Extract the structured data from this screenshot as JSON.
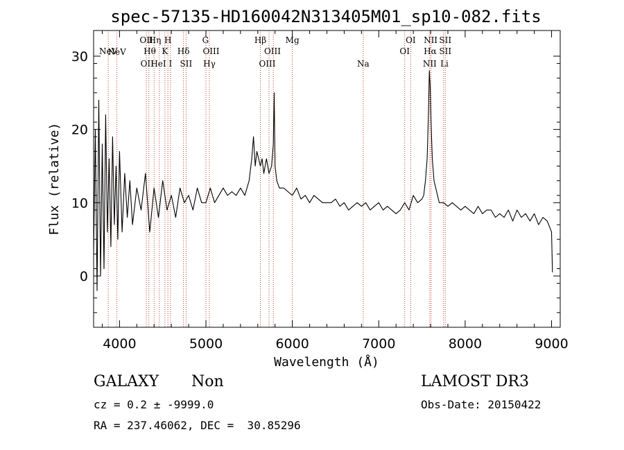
{
  "chart_data": {
    "type": "line",
    "title": "spec-57135-HD160042N313405M01_sp10-082.fits",
    "xlabel": "Wavelength (Å)",
    "ylabel": "Flux (relative)",
    "xlim": [
      3700,
      9100
    ],
    "ylim": [
      -7,
      33.5
    ],
    "xticks": [
      4000,
      5000,
      6000,
      7000,
      8000,
      9000
    ],
    "yticks": [
      0,
      10,
      20,
      30
    ],
    "grid": false,
    "series": [
      {
        "x": [
          3700,
          3720,
          3740,
          3760,
          3780,
          3800,
          3820,
          3840,
          3860,
          3880,
          3900,
          3920,
          3940,
          3960,
          3980,
          4000,
          4030,
          4060,
          4090,
          4120,
          4150,
          4200,
          4250,
          4300,
          4350,
          4400,
          4450,
          4500,
          4550,
          4600,
          4650,
          4700,
          4750,
          4800,
          4850,
          4900,
          4950,
          5000,
          5050,
          5100,
          5150,
          5200,
          5250,
          5300,
          5350,
          5400,
          5450,
          5500,
          5530,
          5550,
          5570,
          5590,
          5610,
          5630,
          5650,
          5670,
          5700,
          5730,
          5760,
          5780,
          5790,
          5800,
          5820,
          5850,
          5900,
          5950,
          6000,
          6050,
          6100,
          6150,
          6200,
          6250,
          6300,
          6350,
          6400,
          6450,
          6500,
          6550,
          6600,
          6650,
          6700,
          6750,
          6800,
          6850,
          6900,
          6950,
          7000,
          7050,
          7100,
          7150,
          7200,
          7250,
          7300,
          7350,
          7400,
          7450,
          7500,
          7520,
          7540,
          7560,
          7575,
          7585,
          7595,
          7605,
          7620,
          7640,
          7660,
          7680,
          7700,
          7750,
          7800,
          7850,
          7900,
          7950,
          8000,
          8050,
          8100,
          8150,
          8200,
          8250,
          8300,
          8350,
          8400,
          8450,
          8500,
          8550,
          8600,
          8650,
          8700,
          8750,
          8800,
          8850,
          8900,
          8950,
          9000,
          9010
        ],
        "y": [
          3,
          20,
          -2,
          24,
          0,
          18,
          1,
          22,
          6,
          16,
          4,
          19,
          7,
          15,
          5,
          17,
          6,
          14,
          8,
          13,
          7,
          12,
          9,
          14,
          6,
          12,
          8,
          13,
          9,
          11,
          8,
          12,
          10,
          11,
          9,
          12,
          10,
          10,
          12,
          10,
          11,
          12,
          11,
          11.5,
          11,
          12,
          11,
          13,
          16,
          19,
          15,
          17,
          16,
          15,
          16,
          14,
          16,
          14,
          15,
          18,
          25,
          15,
          13,
          12,
          12,
          11.5,
          11,
          12,
          10.5,
          11,
          10,
          11,
          10.5,
          10,
          10,
          10,
          10.5,
          9.5,
          10,
          9,
          9.5,
          10,
          9.5,
          10,
          9,
          9.5,
          10,
          9,
          9.5,
          9,
          8.5,
          9,
          10,
          9,
          11,
          10,
          10.5,
          11,
          13,
          16,
          22,
          28,
          26,
          21,
          16,
          13,
          12,
          11,
          10,
          10,
          9.5,
          10,
          9.5,
          9,
          9.5,
          9,
          8.5,
          9.5,
          8.5,
          9,
          9,
          8,
          8.5,
          8,
          9,
          7.5,
          9,
          8,
          8.5,
          7.5,
          8.5,
          7,
          8,
          7.5,
          6,
          0.5
        ]
      }
    ],
    "line_labels": [
      {
        "name": "NeV",
        "x": 3870,
        "row": 1
      },
      {
        "name": "NeV",
        "x": 3970,
        "row": 0
      },
      {
        "name": "OII",
        "x": 4310,
        "row": -1
      },
      {
        "name": "OII",
        "x": 4320,
        "row": 2
      },
      {
        "name": "Hθ",
        "x": 4350,
        "row": 1
      },
      {
        "name": "Hη",
        "x": 4410,
        "row": -1
      },
      {
        "name": "HeI",
        "x": 4450,
        "row": 2
      },
      {
        "name": "K",
        "x": 4525,
        "row": 1
      },
      {
        "name": "H",
        "x": 4560,
        "row": -1
      },
      {
        "name": "I",
        "x": 4590,
        "row": 2
      },
      {
        "name": "Hδ",
        "x": 4740,
        "row": 1
      },
      {
        "name": "SII",
        "x": 4770,
        "row": 2
      },
      {
        "name": "G",
        "x": 4995,
        "row": -1
      },
      {
        "name": "OIII",
        "x": 5060,
        "row": 1
      },
      {
        "name": "Hγ",
        "x": 5040,
        "row": 2
      },
      {
        "name": "Hβ",
        "x": 5630,
        "row": -1
      },
      {
        "name": "OIII",
        "x": 5770,
        "row": 1
      },
      {
        "name": "OIII",
        "x": 5710,
        "row": 2
      },
      {
        "name": "Mg",
        "x": 6000,
        "row": -1
      },
      {
        "name": "Na",
        "x": 6820,
        "row": 2
      },
      {
        "name": "OI",
        "x": 7370,
        "row": -1
      },
      {
        "name": "OI",
        "x": 7300,
        "row": 1
      },
      {
        "name": "NII",
        "x": 7600,
        "row": -1
      },
      {
        "name": "Hα",
        "x": 7595,
        "row": 1
      },
      {
        "name": "NII",
        "x": 7590,
        "row": 2
      },
      {
        "name": "SII",
        "x": 7770,
        "row": -1
      },
      {
        "name": "SII",
        "x": 7770,
        "row": 1
      },
      {
        "name": "Li",
        "x": 7760,
        "row": 2
      }
    ],
    "ref_lines_x": [
      3870,
      3970,
      4310,
      4340,
      4400,
      4460,
      4525,
      4560,
      4590,
      4740,
      4770,
      5000,
      5040,
      5630,
      5730,
      5780,
      6000,
      6820,
      7300,
      7370,
      7590,
      7605,
      7750,
      7770
    ]
  },
  "info": {
    "class": "GALAXY",
    "subclass": "Non",
    "survey": "LAMOST DR3",
    "cz": "cz = 0.2 ± -9999.0",
    "obs_date": "Obs-Date: 20150422",
    "coords": "RA = 237.46062, DEC =  30.85296"
  },
  "colors": {
    "spectrum": "#000000",
    "ref_line": "#c0392b",
    "axes": "#000000"
  }
}
